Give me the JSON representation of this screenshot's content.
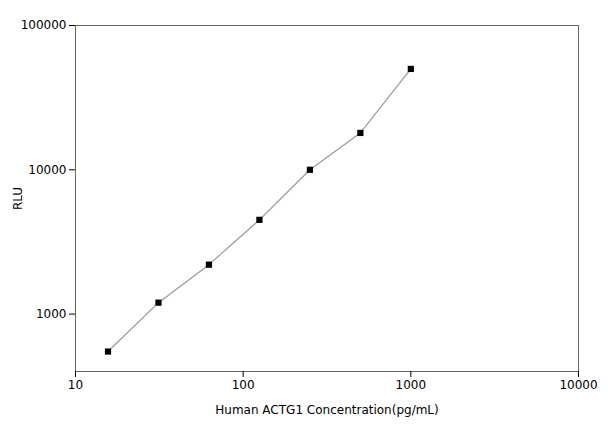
{
  "chart_data": {
    "type": "line",
    "x": [
      15.625,
      31.25,
      62.5,
      125,
      250,
      500,
      1000
    ],
    "values": [
      550,
      1200,
      2200,
      4500,
      10000,
      18000,
      50000
    ],
    "xlabel": "Human ACTG1 Concentration(pg/mL)",
    "ylabel": "RLU",
    "xlim": [
      10,
      10000
    ],
    "ylim": [
      400,
      100000
    ],
    "xticks": [
      10,
      100,
      1000,
      10000
    ],
    "yticks": [
      1000,
      10000,
      100000
    ],
    "log": true,
    "marker": "square",
    "grid": false
  }
}
